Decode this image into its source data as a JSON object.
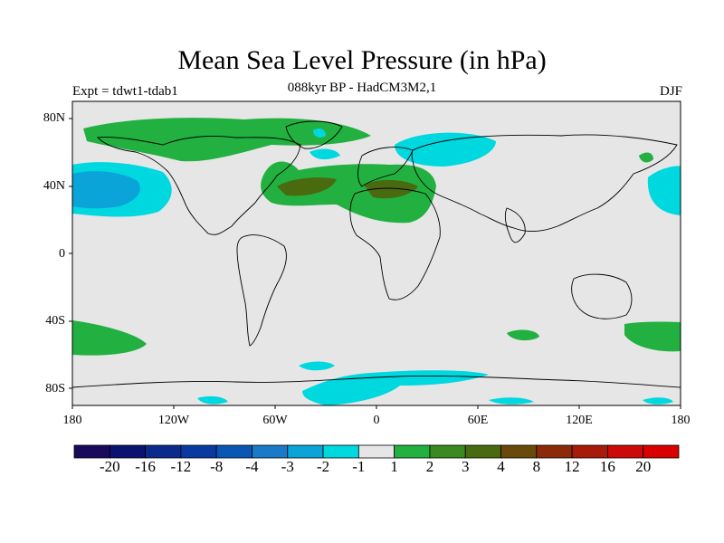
{
  "title": "Mean Sea Level Pressure (in hPa)",
  "subtitle": "088kyr BP - HadCM3M2,1",
  "left_string": "Expt = tdwt1-tdab1",
  "right_string": "DJF",
  "lat_labels": [
    "80N",
    "40N",
    "0",
    "40S",
    "80S"
  ],
  "lon_labels": [
    "180",
    "120W",
    "60W",
    "0",
    "60E",
    "120E",
    "180"
  ],
  "colorbar": {
    "labels": [
      "-20",
      "-16",
      "-12",
      "-8",
      "-4",
      "-3",
      "-2",
      "-1",
      "1",
      "2",
      "3",
      "4",
      "8",
      "12",
      "16",
      "20"
    ],
    "colors": [
      "#1a0a5c",
      "#0a1470",
      "#0a2a8c",
      "#0a3aa0",
      "#0a56b4",
      "#1a7ac8",
      "#0aa4d8",
      "#00d8e0",
      "#e6e6e6",
      "#22b040",
      "#3a8a20",
      "#4a6a10",
      "#6a4a0a",
      "#8a2a0a",
      "#a81a0a",
      "#cc0a0a",
      "#d80000"
    ]
  },
  "colors": {
    "land_background": "#e6e6e6",
    "cyan": "#00d8e0",
    "blue": "#0aa4d8",
    "green": "#22b040",
    "olive": "#4a6a10"
  }
}
